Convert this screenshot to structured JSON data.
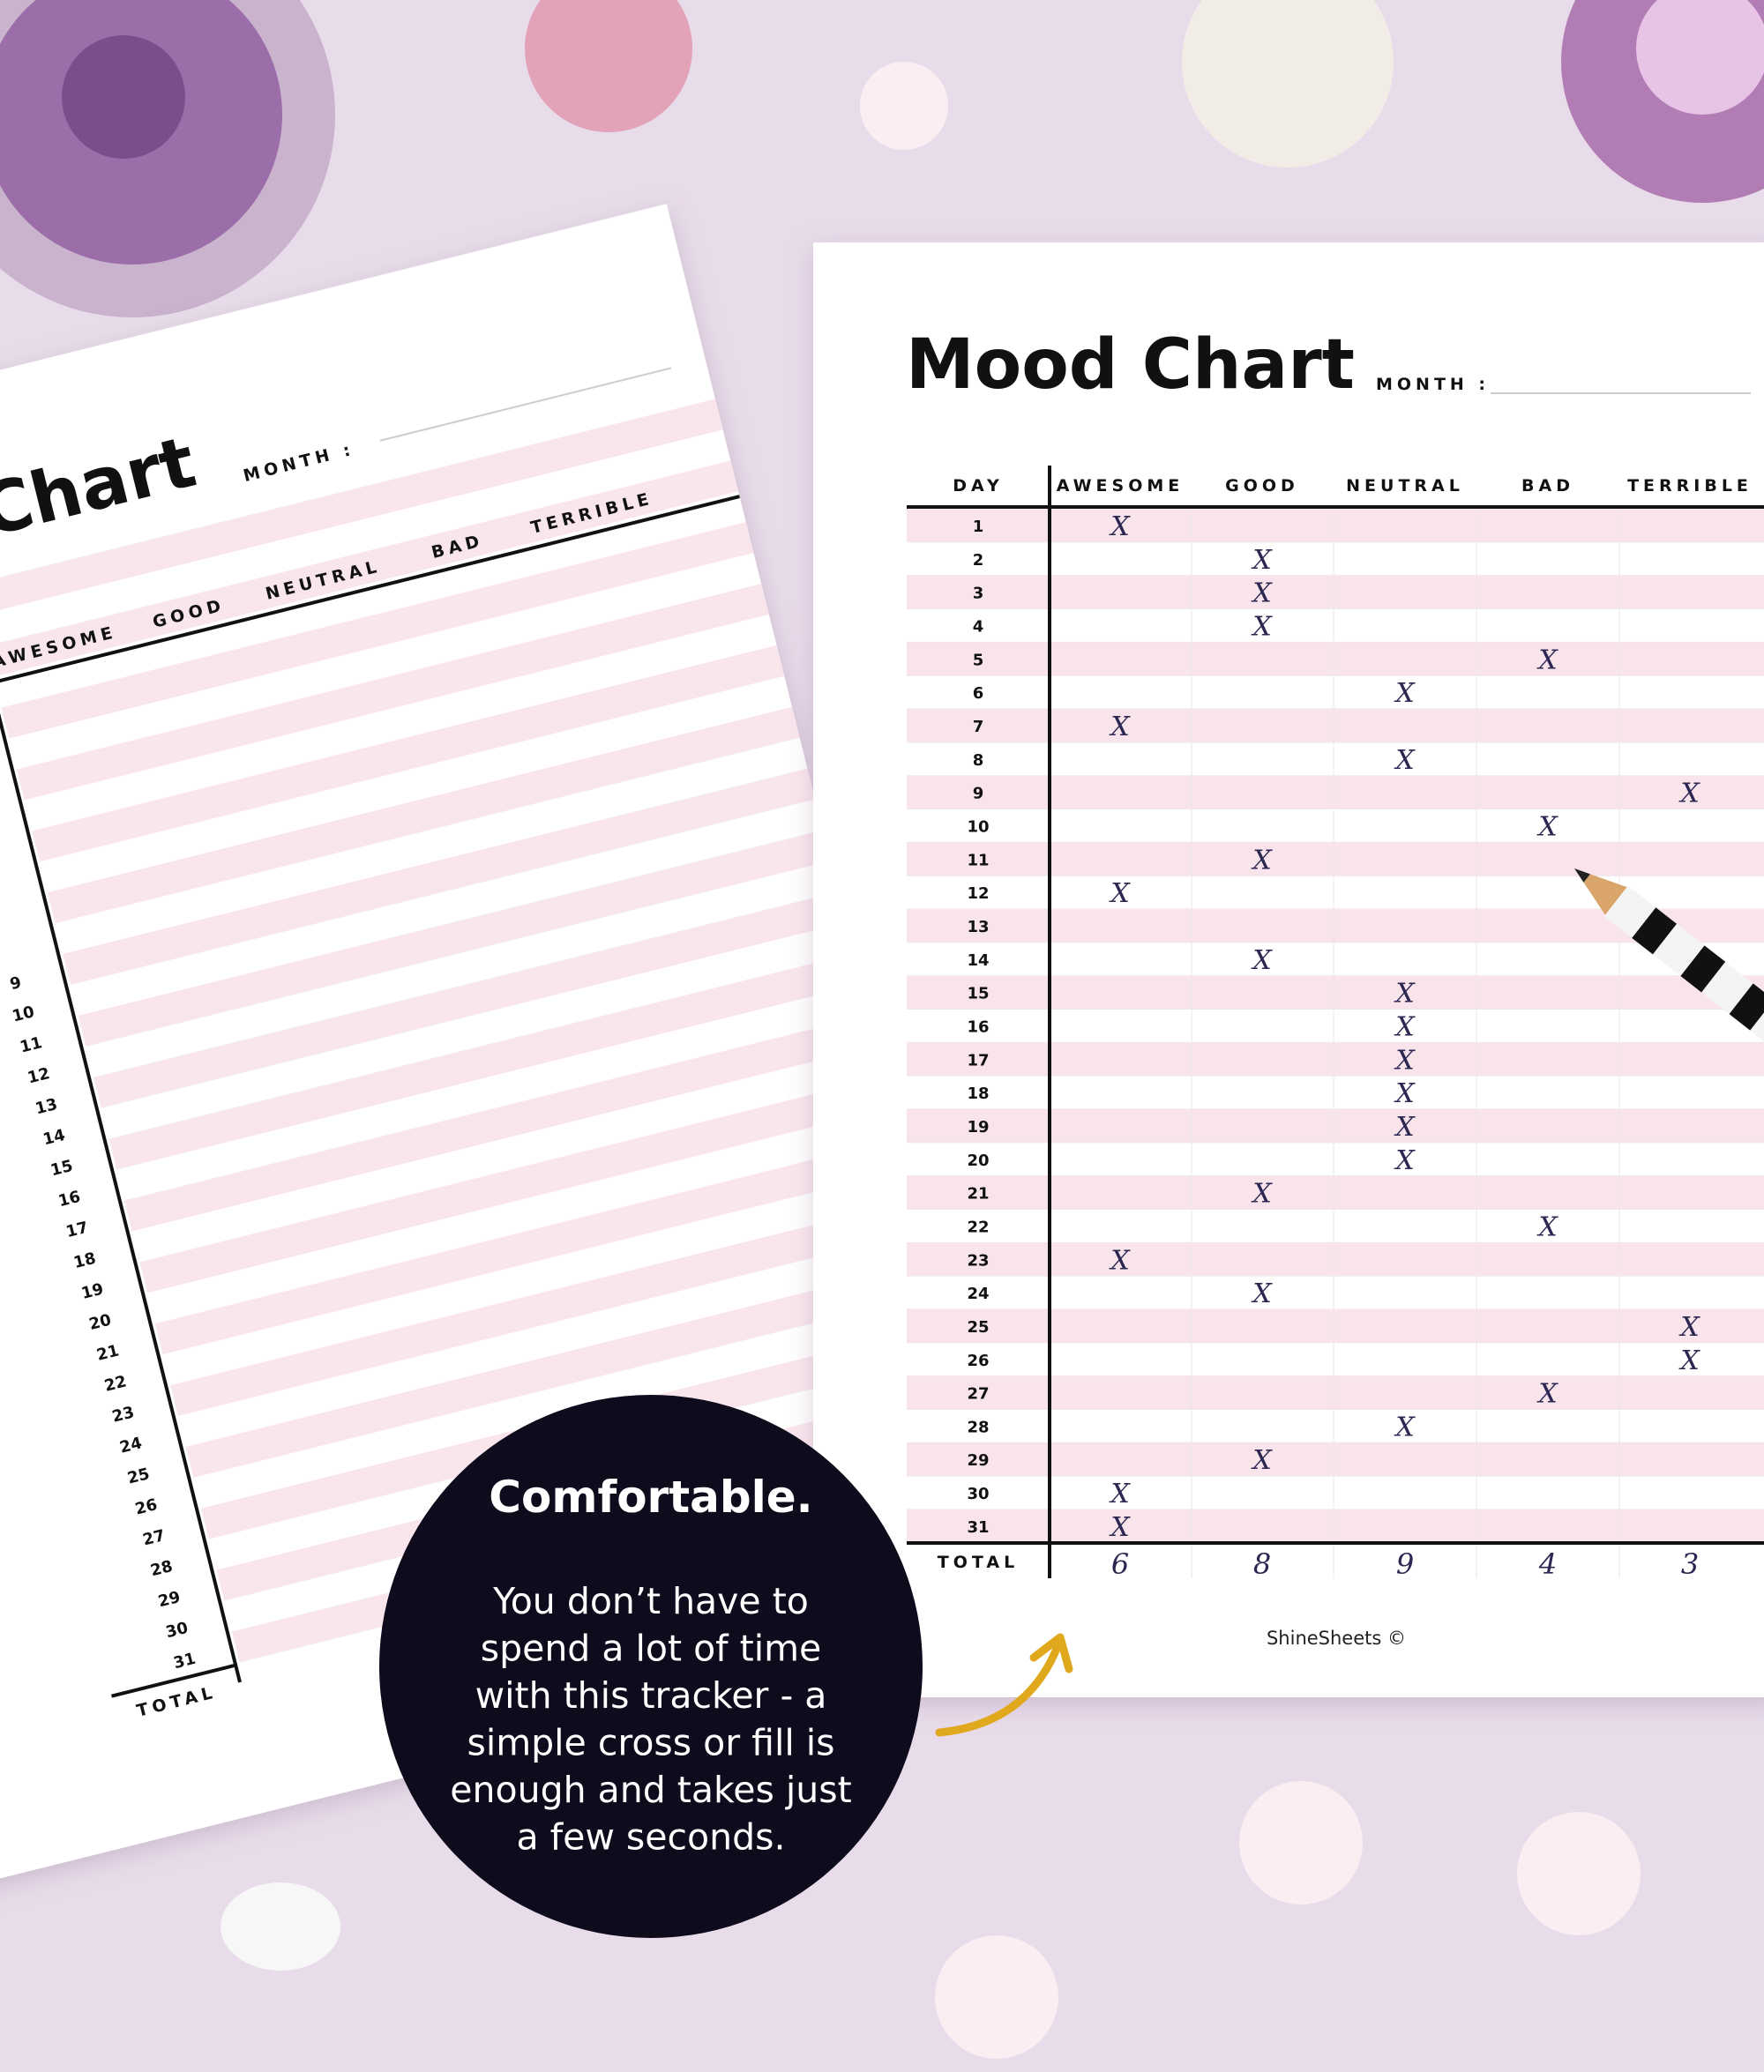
{
  "left_sheet": {
    "title": "Chart",
    "month_label": "MONTH :",
    "columns": [
      "AWESOME",
      "GOOD",
      "NEUTRAL",
      "BAD",
      "TERRIBLE"
    ],
    "days": [
      9,
      10,
      11,
      12,
      13,
      14,
      15,
      16,
      17,
      18,
      19,
      20,
      21,
      22,
      23,
      24,
      25,
      26,
      27,
      28,
      29,
      30,
      31
    ],
    "total_label": "TOTAL"
  },
  "right_sheet": {
    "title": "Mood Chart",
    "month_label": "MONTH :",
    "day_header": "DAY",
    "columns": [
      "AWESOME",
      "GOOD",
      "NEUTRAL",
      "BAD",
      "TERRIBLE"
    ],
    "days": [
      1,
      2,
      3,
      4,
      5,
      6,
      7,
      8,
      9,
      10,
      11,
      12,
      13,
      14,
      15,
      16,
      17,
      18,
      19,
      20,
      21,
      22,
      23,
      24,
      25,
      26,
      27,
      28,
      29,
      30,
      31
    ],
    "marks": [
      [
        "X",
        null,
        null,
        null,
        null
      ],
      [
        null,
        "X",
        null,
        null,
        null
      ],
      [
        null,
        "X",
        null,
        null,
        null
      ],
      [
        null,
        "X",
        null,
        null,
        null
      ],
      [
        null,
        null,
        null,
        "X",
        null
      ],
      [
        null,
        null,
        "X",
        null,
        null
      ],
      [
        "X",
        null,
        null,
        null,
        null
      ],
      [
        null,
        null,
        "X",
        null,
        null
      ],
      [
        null,
        null,
        null,
        null,
        "X"
      ],
      [
        null,
        null,
        null,
        "X",
        null
      ],
      [
        null,
        "X",
        null,
        null,
        null
      ],
      [
        "X",
        null,
        null,
        null,
        null
      ],
      [
        null,
        null,
        null,
        null,
        null
      ],
      [
        null,
        "X",
        null,
        null,
        null
      ],
      [
        null,
        null,
        "X",
        null,
        null
      ],
      [
        null,
        null,
        "X",
        null,
        null
      ],
      [
        null,
        null,
        "X",
        null,
        null
      ],
      [
        null,
        null,
        "X",
        null,
        null
      ],
      [
        null,
        null,
        "X",
        null,
        null
      ],
      [
        null,
        null,
        "X",
        null,
        null
      ],
      [
        null,
        "X",
        null,
        null,
        null
      ],
      [
        null,
        null,
        null,
        "X",
        null
      ],
      [
        "X",
        null,
        null,
        null,
        null
      ],
      [
        null,
        "X",
        null,
        null,
        null
      ],
      [
        null,
        null,
        null,
        null,
        "X"
      ],
      [
        null,
        null,
        null,
        null,
        "X"
      ],
      [
        null,
        null,
        null,
        "X",
        null
      ],
      [
        null,
        null,
        "X",
        null,
        null
      ],
      [
        null,
        "X",
        null,
        null,
        null
      ],
      [
        "X",
        null,
        null,
        null,
        null
      ],
      [
        "X",
        null,
        null,
        null,
        null
      ]
    ],
    "total_label": "TOTAL",
    "totals": [
      6,
      8,
      9,
      4,
      3
    ],
    "footer": "ShineSheets ©"
  },
  "callout": {
    "title": "Comfortable.",
    "lines": [
      "You don’t have to",
      "spend a lot of time",
      "with this tracker - a",
      "simple cross or fill is",
      "enough and takes just",
      "a few seconds."
    ]
  }
}
